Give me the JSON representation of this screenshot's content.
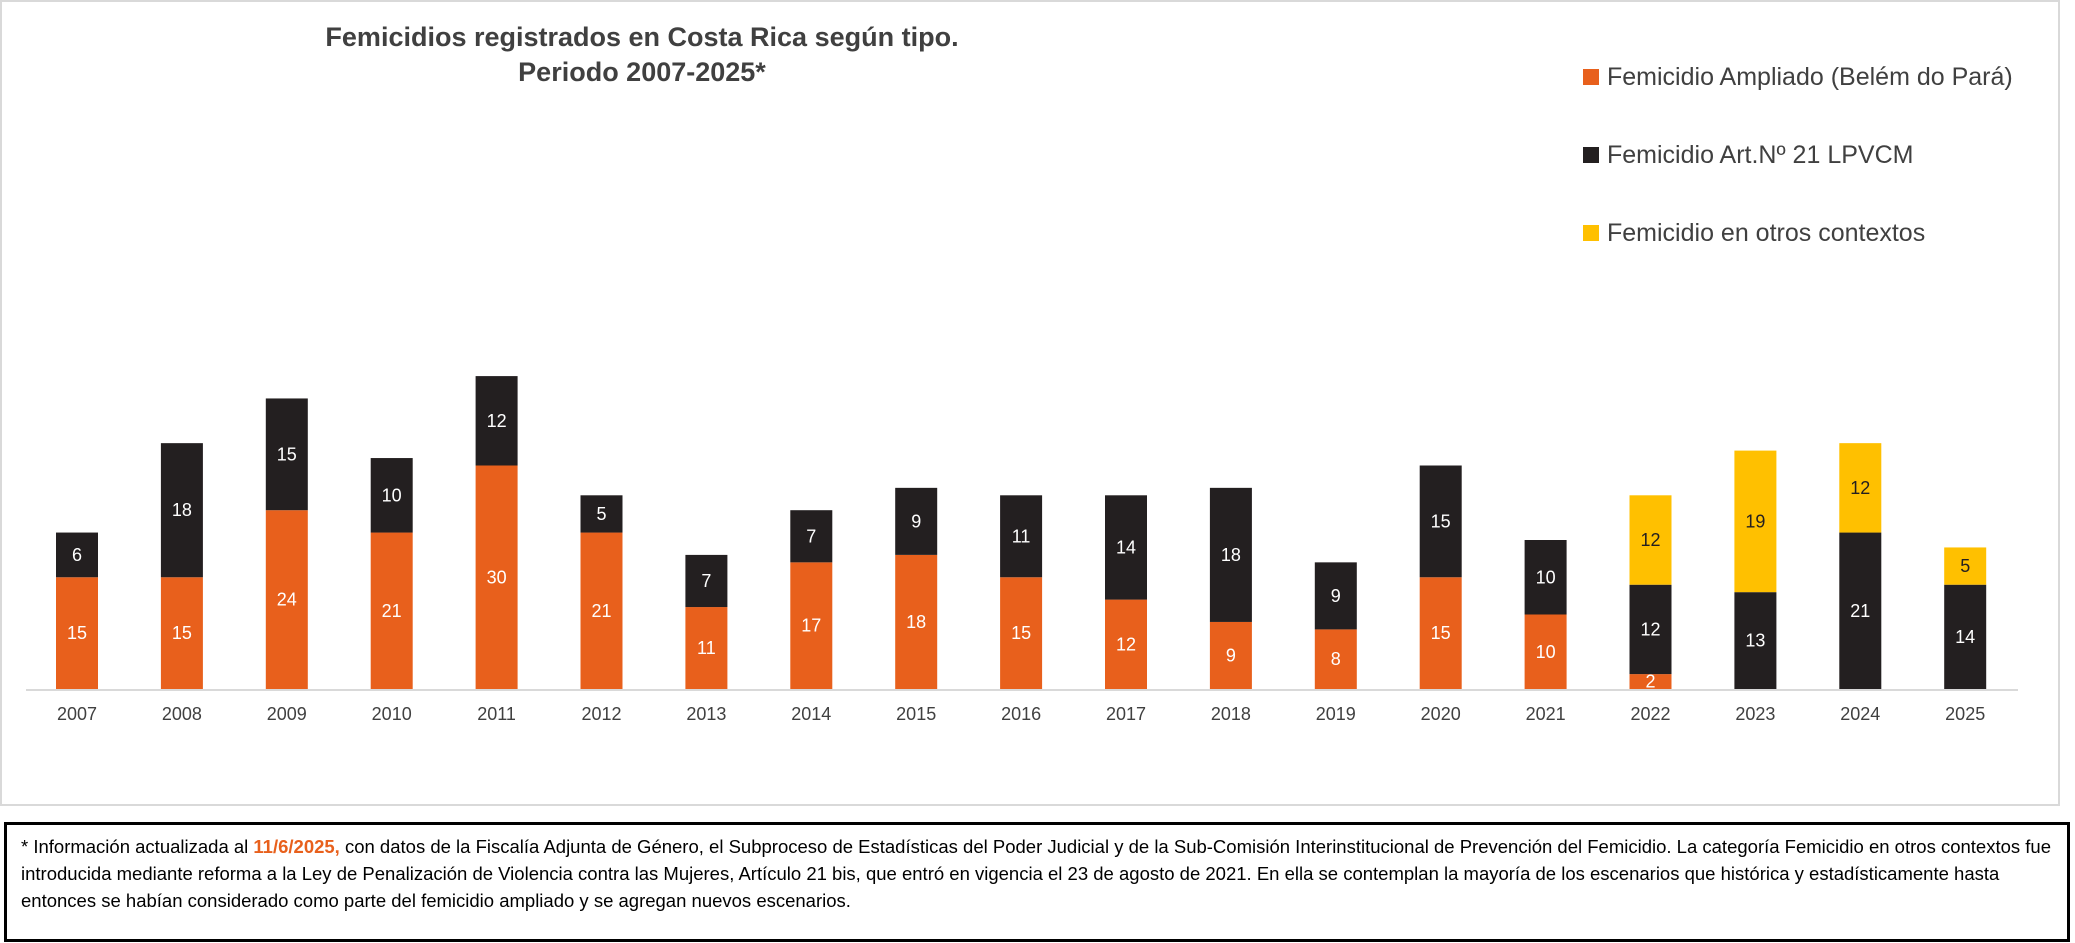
{
  "chart_data": {
    "type": "bar",
    "stacked": true,
    "title": [
      "Femicidios registrados en Costa Rica según tipo.",
      "Periodo 2007-2025*"
    ],
    "categories": [
      "2007",
      "2008",
      "2009",
      "2010",
      "2011",
      "2012",
      "2013",
      "2014",
      "2015",
      "2016",
      "2017",
      "2018",
      "2019",
      "2020",
      "2021",
      "2022",
      "2023",
      "2024",
      "2025"
    ],
    "series": [
      {
        "name": "Femicidio Ampliado (Belém do Pará)",
        "color": "#e8601c",
        "label_color": "#ffffff",
        "values": [
          15,
          15,
          24,
          21,
          30,
          21,
          11,
          17,
          18,
          15,
          12,
          9,
          8,
          15,
          10,
          2,
          null,
          null,
          null
        ]
      },
      {
        "name": "Femicidio Art.Nº 21 LPVCM",
        "color": "#231f20",
        "label_color": "#ffffff",
        "values": [
          6,
          18,
          15,
          10,
          12,
          5,
          7,
          7,
          9,
          11,
          14,
          18,
          9,
          15,
          10,
          12,
          13,
          21,
          14
        ]
      },
      {
        "name": "Femicidio en otros contextos",
        "color": "#ffc000",
        "label_color": "#231f20",
        "values": [
          null,
          null,
          null,
          null,
          null,
          null,
          null,
          null,
          null,
          null,
          null,
          null,
          null,
          null,
          null,
          12,
          19,
          12,
          5
        ]
      }
    ],
    "ylim": [
      0,
      45
    ],
    "grid": false,
    "legend_position": "top-right",
    "xlabel": "",
    "ylabel": ""
  },
  "footnote": {
    "prefix": "* Información actualizada al ",
    "date": "11/6/2025,",
    "body": " con datos de la Fiscalía Adjunta de Género, el Subproceso de Estadísticas del Poder Judicial y de la Sub-Comisión Interinstitucional de Prevención del Femicidio.  La categoría Femicidio en otros contextos fue introducida mediante reforma a la Ley de Penalización de Violencia contra las Mujeres, Artículo 21 bis, que entró en vigencia el 23 de agosto de 2021. En ella se contemplan la mayoría de los escenarios que histórica y estadísticamente hasta entonces se habían considerado como parte del femicidio ampliado y se agregan nuevos escenarios."
  }
}
